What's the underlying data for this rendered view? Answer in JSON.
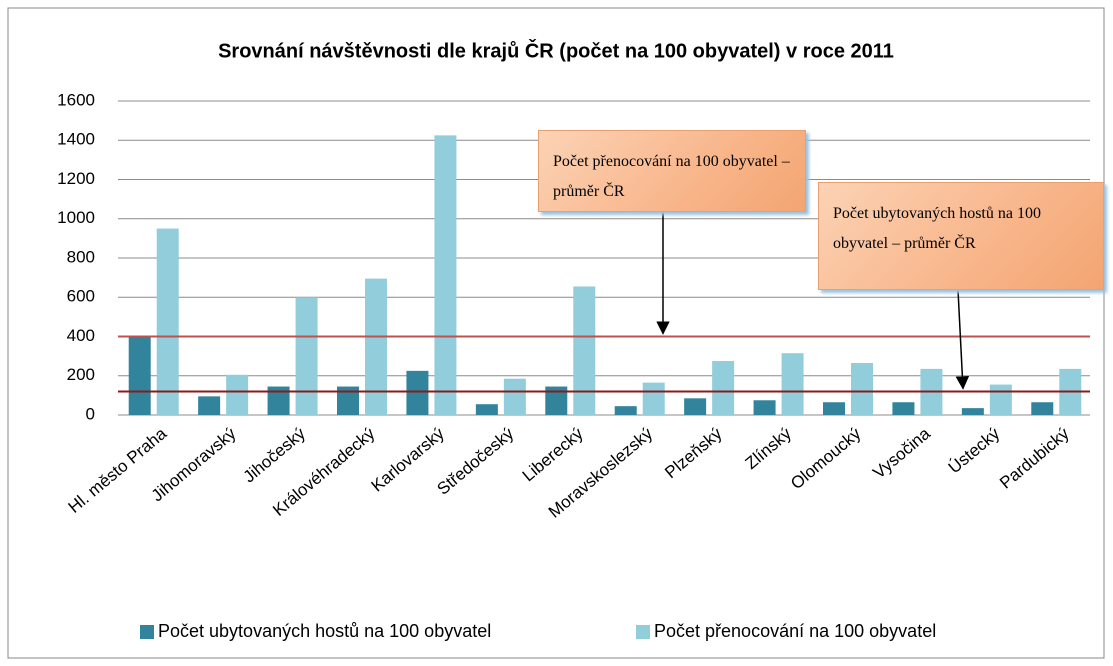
{
  "chart_data": {
    "type": "bar",
    "title": "Srovnání návštěvnosti dle krajů ČR (počet na 100  obyvatel) v roce 2011",
    "categories": [
      "Hl. město Praha",
      "Jihomoravský",
      "Jihočeský",
      "Královéhradecký",
      "Karlovarský",
      "Středočeský",
      "Liberecký",
      "Moravskoslezský",
      "Plzeňský",
      "Zlínský",
      "Olomoucký",
      "Vysočina",
      "Ústecký",
      "Pardubický"
    ],
    "series": [
      {
        "name": "Počet ubytovaných hostů na 100 obyvatel",
        "color": "#31849b",
        "values": [
          400,
          95,
          145,
          145,
          225,
          55,
          145,
          45,
          85,
          75,
          65,
          65,
          35,
          65
        ]
      },
      {
        "name": "Počet přenocování na 100 obyvatel",
        "color": "#92cddc",
        "values": [
          950,
          205,
          600,
          695,
          1425,
          185,
          655,
          165,
          275,
          315,
          265,
          235,
          155,
          235
        ]
      }
    ],
    "ylim": [
      0,
      1600
    ],
    "yticks": [
      0,
      200,
      400,
      600,
      800,
      1000,
      1200,
      1400,
      1600
    ],
    "grid": true,
    "legend": "bottom",
    "reference_lines": [
      {
        "value": 400,
        "color": "#c0504d"
      },
      {
        "value": 120,
        "color": "#8b1a1a"
      }
    ],
    "annotations": [
      {
        "text": "Počet přenocování na 100 obyvatel – průměr ČR",
        "points_to": 400
      },
      {
        "text": "Počet ubytovaných hostů na 100 obyvatel – průměr ČR",
        "points_to": 120
      }
    ]
  }
}
